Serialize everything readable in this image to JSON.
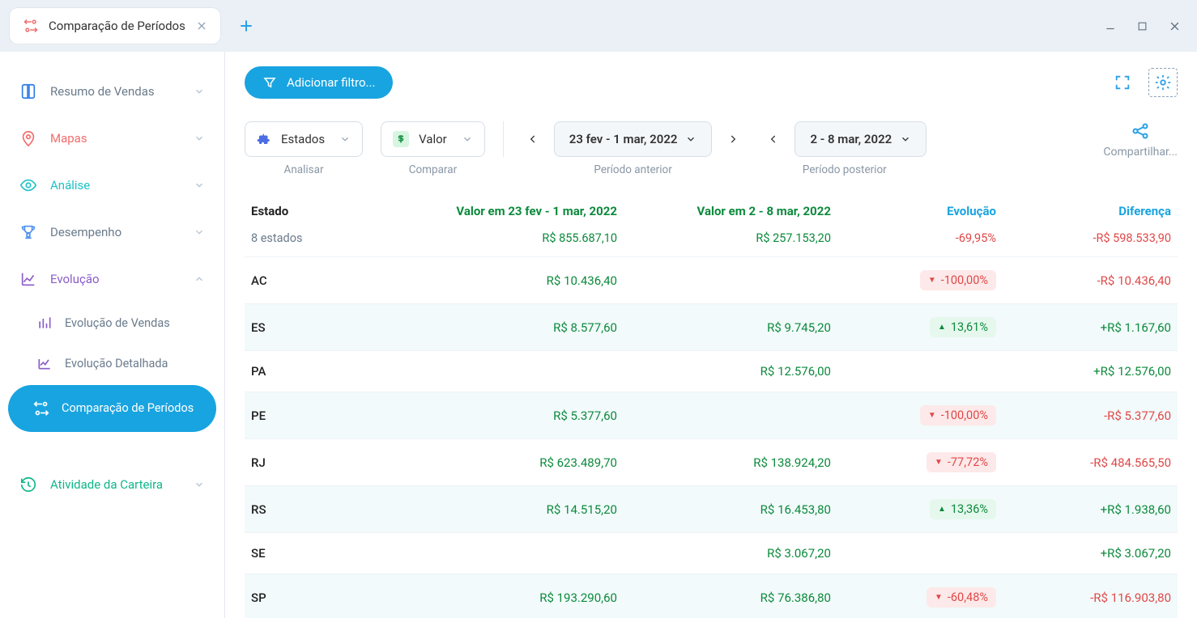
{
  "colors": {
    "accent": "#18a4e0",
    "green": "#0c8a3c",
    "red": "#e04848",
    "bgAlt": "#f2fafb",
    "sidebarMapas": "#f26d6d",
    "sidebarAnalise": "#1fc1c7",
    "sidebarEvolucao": "#8a5cc9",
    "sidebarAtividade": "#0fb68a"
  },
  "window": {
    "tab_label": "Comparação de Períodos"
  },
  "sidebar": {
    "items": [
      {
        "key": "resumo",
        "label": "Resumo de Vendas"
      },
      {
        "key": "mapas",
        "label": "Mapas"
      },
      {
        "key": "analise",
        "label": "Análise"
      },
      {
        "key": "desempenho",
        "label": "Desempenho"
      },
      {
        "key": "evolucao",
        "label": "Evolução",
        "expanded": true,
        "children": [
          {
            "key": "ev-vendas",
            "label": "Evolução de Vendas"
          },
          {
            "key": "ev-det",
            "label": "Evolução Detalhada"
          },
          {
            "key": "ev-comp",
            "label": "Comparação de Períodos",
            "active": true
          }
        ]
      },
      {
        "key": "atividade",
        "label": "Atividade da Carteira"
      }
    ]
  },
  "filter": {
    "add_label": "Adicionar filtro..."
  },
  "controls": {
    "analyze": {
      "label": "Estados",
      "sub": "Analisar"
    },
    "compare": {
      "label": "Valor",
      "sub": "Comparar"
    },
    "period_prev": {
      "label": "23 fev - 1 mar, 2022",
      "sub": "Período anterior"
    },
    "period_next": {
      "label": "2 - 8 mar, 2022",
      "sub": "Período posterior"
    },
    "share": {
      "label": "Compartilhar..."
    }
  },
  "table": {
    "headers": {
      "estado": "Estado",
      "v1": "Valor em 23 fev - 1 mar, 2022",
      "v2": "Valor em 2 - 8 mar, 2022",
      "evo": "Evolução",
      "dif": "Diferença"
    },
    "summary": {
      "count": "8 estados",
      "v1": "R$ 855.687,10",
      "v2": "R$ 257.153,20",
      "evo": "-69,95%",
      "dif": "-R$ 598.533,90"
    },
    "rows": [
      {
        "estado": "AC",
        "v1": "R$ 10.436,40",
        "v2": "",
        "evo": "-100,00%",
        "evo_dir": "down",
        "dif": "-R$ 10.436,40",
        "dif_dir": "down"
      },
      {
        "estado": "ES",
        "v1": "R$ 8.577,60",
        "v2": "R$ 9.745,20",
        "evo": "13,61%",
        "evo_dir": "up",
        "dif": "+R$ 1.167,60",
        "dif_dir": "up"
      },
      {
        "estado": "PA",
        "v1": "",
        "v2": "R$ 12.576,00",
        "evo": "",
        "evo_dir": "",
        "dif": "+R$ 12.576,00",
        "dif_dir": "up"
      },
      {
        "estado": "PE",
        "v1": "R$ 5.377,60",
        "v2": "",
        "evo": "-100,00%",
        "evo_dir": "down",
        "dif": "-R$ 5.377,60",
        "dif_dir": "down"
      },
      {
        "estado": "RJ",
        "v1": "R$ 623.489,70",
        "v2": "R$ 138.924,20",
        "evo": "-77,72%",
        "evo_dir": "down",
        "dif": "-R$ 484.565,50",
        "dif_dir": "down"
      },
      {
        "estado": "RS",
        "v1": "R$ 14.515,20",
        "v2": "R$ 16.453,80",
        "evo": "13,36%",
        "evo_dir": "up",
        "dif": "+R$ 1.938,60",
        "dif_dir": "up"
      },
      {
        "estado": "SE",
        "v1": "",
        "v2": "R$ 3.067,20",
        "evo": "",
        "evo_dir": "",
        "dif": "+R$ 3.067,20",
        "dif_dir": "up"
      },
      {
        "estado": "SP",
        "v1": "R$ 193.290,60",
        "v2": "R$ 76.386,80",
        "evo": "-60,48%",
        "evo_dir": "down",
        "dif": "-R$ 116.903,80",
        "dif_dir": "down"
      }
    ]
  }
}
